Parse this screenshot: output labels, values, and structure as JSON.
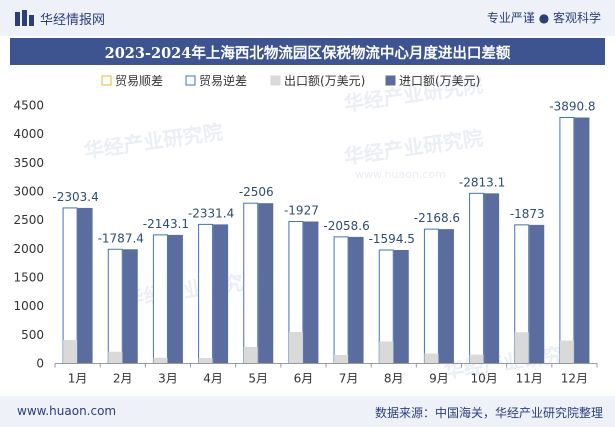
{
  "header": {
    "brand": "华经情报网",
    "tagline": "专业严谨 ● 客观科学"
  },
  "footer": {
    "site": "www.huaon.com",
    "source": "数据来源：中国海关，华经产业研究院整理"
  },
  "watermark": {
    "text": "华经产业研究院",
    "url": "www.huaon.com"
  },
  "colors": {
    "export": "#d9d9d9",
    "import": "#5b6d9e",
    "surplus_legend": "#f2b632",
    "deficit_legend": "#3f74b8",
    "label": "#2e4d73",
    "title_bg": "#3d5491"
  },
  "chart_data": {
    "type": "bar",
    "title": "2023-2024年上海西北物流园区保税物流中心月度进出口差额",
    "categories": [
      "1月",
      "2月",
      "3月",
      "4月",
      "5月",
      "6月",
      "7月",
      "8月",
      "9月",
      "10月",
      "11月",
      "12月"
    ],
    "series": [
      {
        "name": "出口额(万美元)",
        "values": [
          410,
          205,
          100,
          95,
          290,
          550,
          150,
          385,
          175,
          155,
          545,
          400
        ]
      },
      {
        "name": "进口额(万美元)",
        "values": [
          2713.4,
          1992.4,
          2243.1,
          2426.4,
          2796,
          2477,
          2208.6,
          1979.5,
          2343.6,
          2968.1,
          2418,
          4290.8
        ]
      }
    ],
    "balance": {
      "surplus_name": "贸易顺差",
      "deficit_name": "贸易逆差",
      "values": [
        -2303.4,
        -1787.4,
        -2143.1,
        -2331.4,
        -2506,
        -1927,
        -2058.6,
        -1594.5,
        -2168.6,
        -2813.1,
        -1873,
        -3890.8
      ],
      "labels": [
        "-2303.4",
        "-1787.4",
        "-2143.1",
        "-2331.4",
        "-2506",
        "-1927",
        "-2058.6",
        "-1594.5",
        "-2168.6",
        "-2813.1",
        "-1873",
        "-3890.8"
      ]
    },
    "legend": [
      "贸易顺差",
      "贸易逆差",
      "出口额(万美元)",
      "进口额(万美元)"
    ],
    "yticks": [
      0,
      500,
      1000,
      1500,
      2000,
      2500,
      3000,
      3500,
      4000,
      4500
    ],
    "ylim": [
      0,
      4500
    ],
    "xlabel": "",
    "ylabel": ""
  }
}
